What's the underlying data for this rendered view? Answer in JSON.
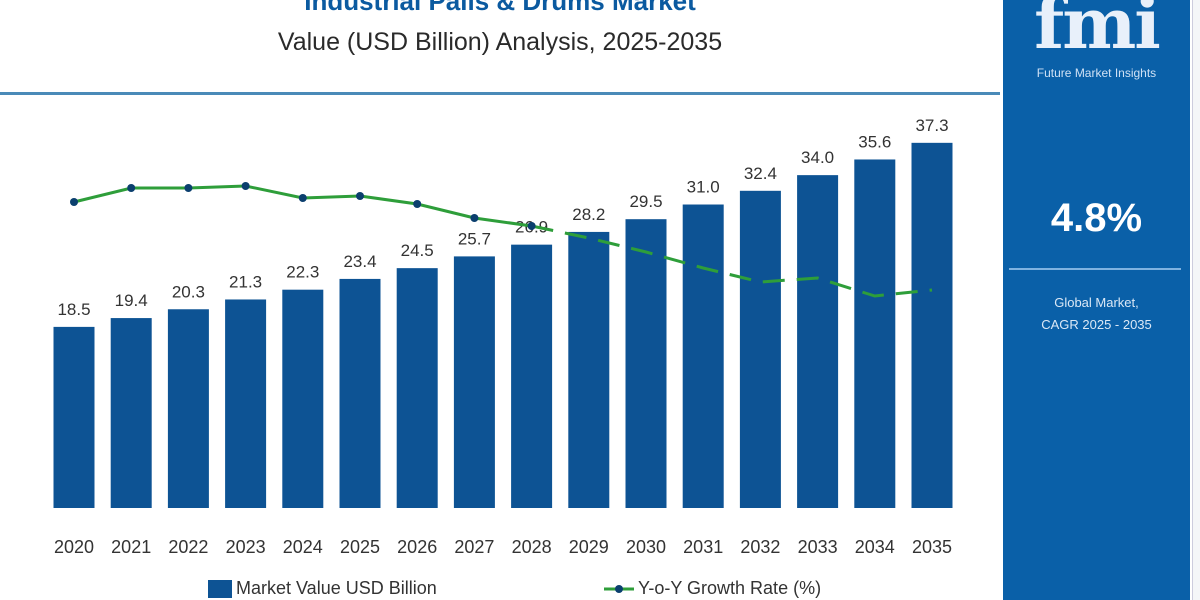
{
  "header": {
    "title": "Industrial Pails & Drums Market",
    "subtitle": "Value (USD Billion) Analysis, 2025-2035"
  },
  "panel": {
    "logo_text": "fmi",
    "brand": "Future Market Insights",
    "cagr": "4.8%",
    "cagr_label_1": "Global Market,",
    "cagr_label_2": "CAGR 2025 - 2035"
  },
  "colors": {
    "bar": "#0d5394",
    "line": "#2e9e3a",
    "marker": "#0b3f6e",
    "panel": "#0a60a8"
  },
  "chart_data": {
    "type": "bar",
    "categories": [
      "2020",
      "2021",
      "2022",
      "2023",
      "2024",
      "2025",
      "2026",
      "2027",
      "2028",
      "2029",
      "2030",
      "2031",
      "2032",
      "2033",
      "2034",
      "2035"
    ],
    "series": [
      {
        "name": "Market Value USD Billion",
        "type": "bar",
        "values": [
          18.5,
          19.4,
          20.3,
          21.3,
          22.3,
          23.4,
          24.5,
          25.7,
          26.9,
          28.2,
          29.5,
          31.0,
          32.4,
          34.0,
          35.6,
          37.3
        ],
        "labels": [
          "18.5",
          "19.4",
          "20.3",
          "21.3",
          "22.3",
          "23.4",
          "24.5",
          "25.7",
          "26.9",
          "28.2",
          "29.5",
          "31.0",
          "32.4",
          "34.0",
          "35.6",
          "37.3"
        ]
      },
      {
        "name": "Y-o-Y Growth Rate (%)",
        "type": "line",
        "values": [
          5.2,
          5.55,
          5.55,
          5.6,
          5.3,
          5.35,
          5.15,
          4.8,
          4.6,
          4.3,
          3.95,
          3.55,
          3.2,
          3.3,
          2.85,
          3.0
        ],
        "dashed_from": "2028"
      }
    ],
    "ylim": [
      0,
      40
    ],
    "grid": false,
    "legend_placement": "bottom"
  }
}
